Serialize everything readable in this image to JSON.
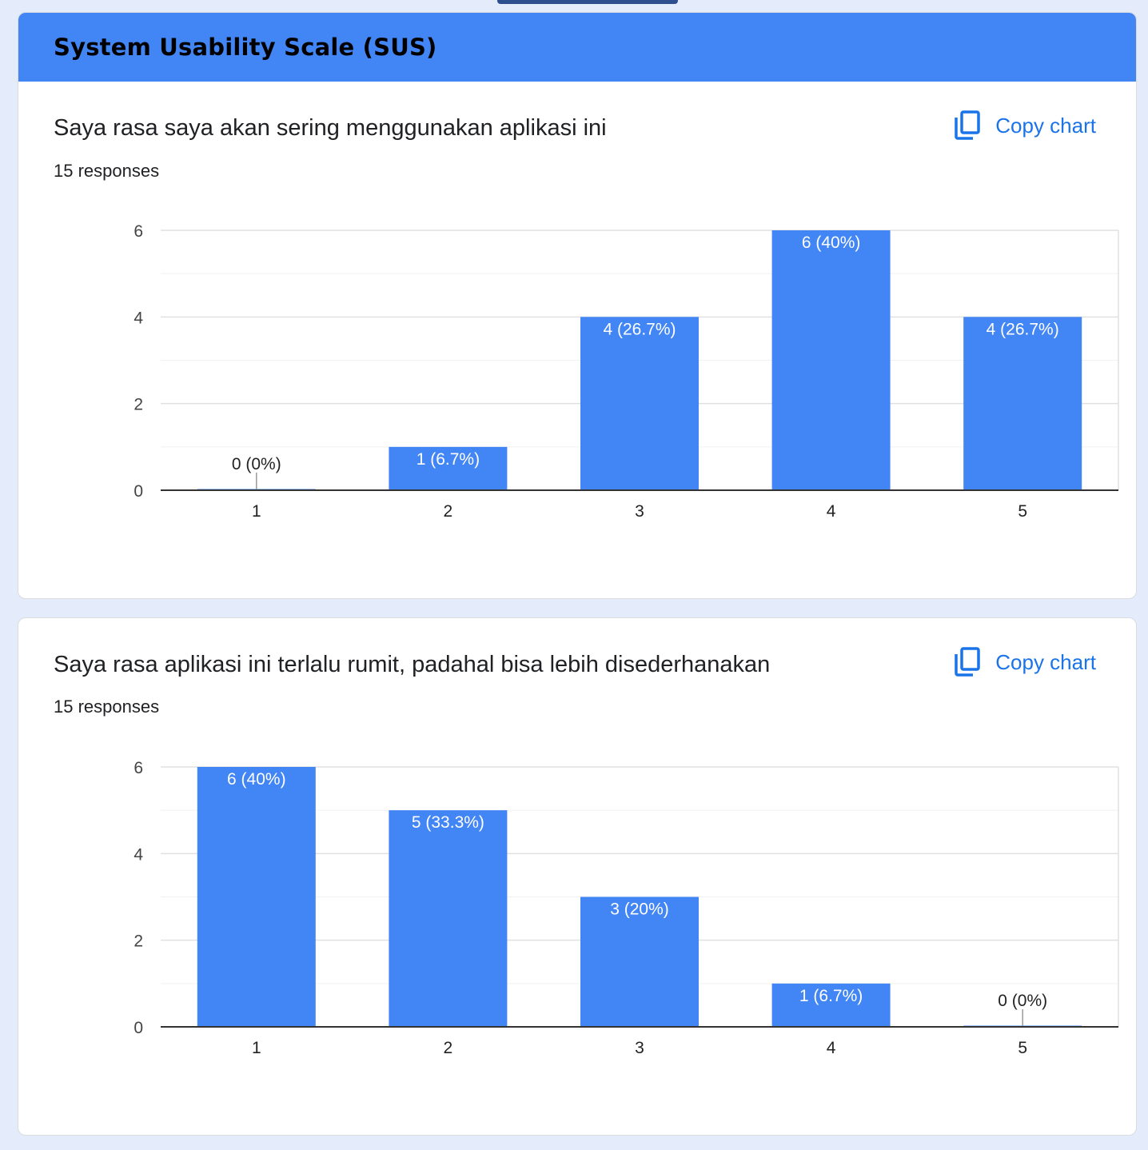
{
  "section_title": "System Usability Scale (SUS)",
  "colors": {
    "bar": "#4285f4",
    "link": "#1a73e8",
    "header": "#4285f4",
    "page_bg": "#e4ebfa"
  },
  "copy_icon": "copy-icon",
  "questions": [
    {
      "title": "Saya rasa saya akan sering menggunakan aplikasi ini",
      "responses": "15 responses",
      "copy_label": "Copy chart"
    },
    {
      "title": "Saya rasa aplikasi ini terlalu rumit, padahal bisa lebih disederhanakan",
      "responses": "15 responses",
      "copy_label": "Copy chart"
    }
  ],
  "chart_data": [
    {
      "type": "bar",
      "categories": [
        "1",
        "2",
        "3",
        "4",
        "5"
      ],
      "values": [
        0,
        1,
        4,
        6,
        4
      ],
      "data_labels": [
        "0 (0%)",
        "1 (6.7%)",
        "4 (26.7%)",
        "6 (40%)",
        "4 (26.7%)"
      ],
      "yticks": [
        0,
        2,
        4,
        6
      ],
      "ylim": [
        0,
        6
      ],
      "grid": true
    },
    {
      "type": "bar",
      "categories": [
        "1",
        "2",
        "3",
        "4",
        "5"
      ],
      "values": [
        6,
        5,
        3,
        1,
        0
      ],
      "data_labels": [
        "6 (40%)",
        "5 (33.3%)",
        "3 (20%)",
        "1 (6.7%)",
        "0 (0%)"
      ],
      "yticks": [
        0,
        2,
        4,
        6
      ],
      "ylim": [
        0,
        6
      ],
      "grid": true
    }
  ]
}
